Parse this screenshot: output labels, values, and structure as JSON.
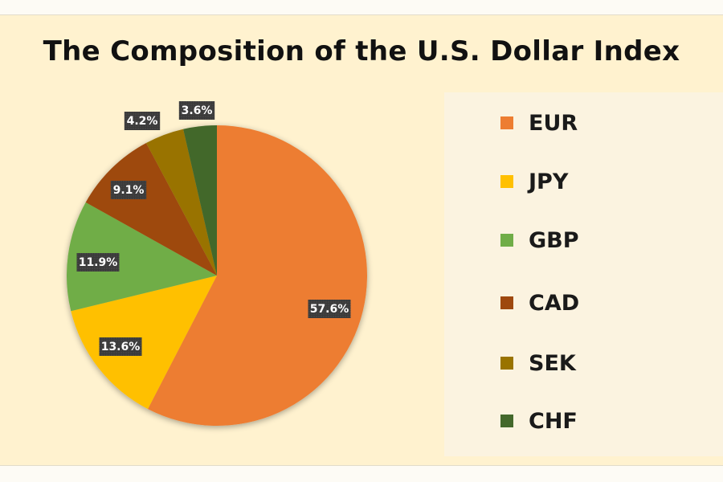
{
  "chart_data": {
    "type": "pie",
    "title": "The Composition of the U.S. Dollar Index",
    "categories": [
      "EUR",
      "JPY",
      "GBP",
      "CAD",
      "SEK",
      "CHF"
    ],
    "values": [
      57.6,
      13.6,
      11.9,
      9.1,
      4.2,
      3.6
    ],
    "labels": [
      "57.6%",
      "13.6%",
      "11.9%",
      "9.1%",
      "4.2%",
      "3.6%"
    ],
    "colors": [
      "#ed7d31",
      "#ffc000",
      "#70ad47",
      "#9e480e",
      "#997300",
      "#43682b"
    ],
    "legend_position": "right",
    "start": "top",
    "direction": "clockwise"
  }
}
